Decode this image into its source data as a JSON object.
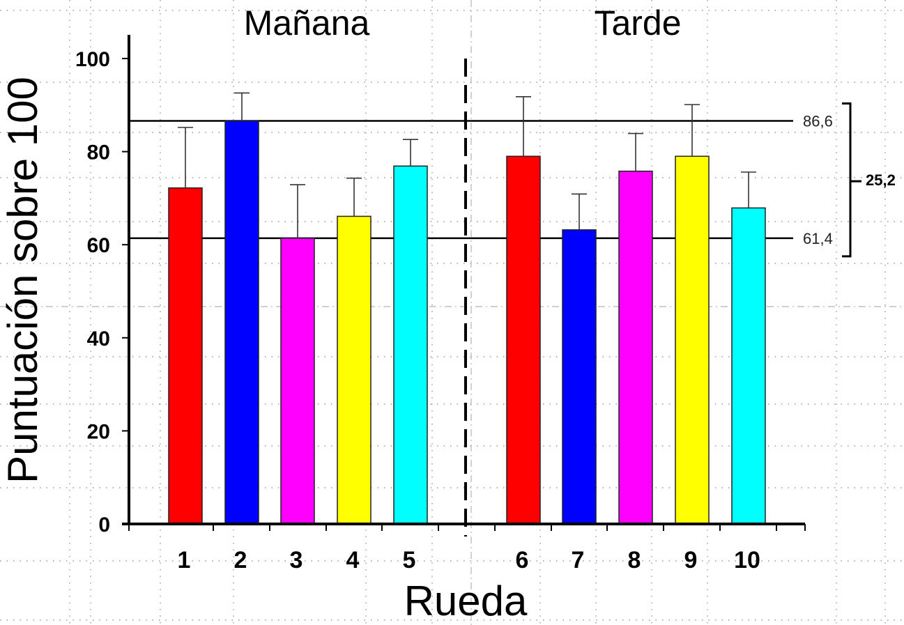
{
  "chart_data": {
    "type": "bar",
    "categories": [
      "1",
      "2",
      "3",
      "4",
      "5",
      "6",
      "7",
      "8",
      "9",
      "10"
    ],
    "values": [
      72.2,
      86.6,
      61.4,
      66.1,
      76.9,
      79.0,
      63.2,
      75.8,
      79.0,
      67.9
    ],
    "error_upper": [
      85.2,
      92.6,
      72.9,
      74.3,
      82.6,
      91.8,
      70.9,
      83.9,
      90.1,
      75.6
    ],
    "colors": [
      "#ff0000",
      "#0000ff",
      "#ff00ff",
      "#ffff00",
      "#00ffff",
      "#ff0000",
      "#0000ff",
      "#ff00ff",
      "#ffff00",
      "#00ffff"
    ],
    "groups": [
      {
        "label": "Mañana",
        "categories": [
          "1",
          "2",
          "3",
          "4",
          "5"
        ]
      },
      {
        "label": "Tarde",
        "categories": [
          "6",
          "7",
          "8",
          "9",
          "10"
        ]
      }
    ],
    "xlabel": "Rueda",
    "ylabel": "Puntuación sobre 100",
    "ylim": [
      0,
      100
    ],
    "yticks": [
      "0",
      "20",
      "40",
      "60",
      "80",
      "100"
    ],
    "reference_lines": [
      {
        "value": 86.6,
        "label": "86,6"
      },
      {
        "value": 61.4,
        "label": "61,4"
      }
    ],
    "range_annotation": "25,2",
    "grid": true
  }
}
